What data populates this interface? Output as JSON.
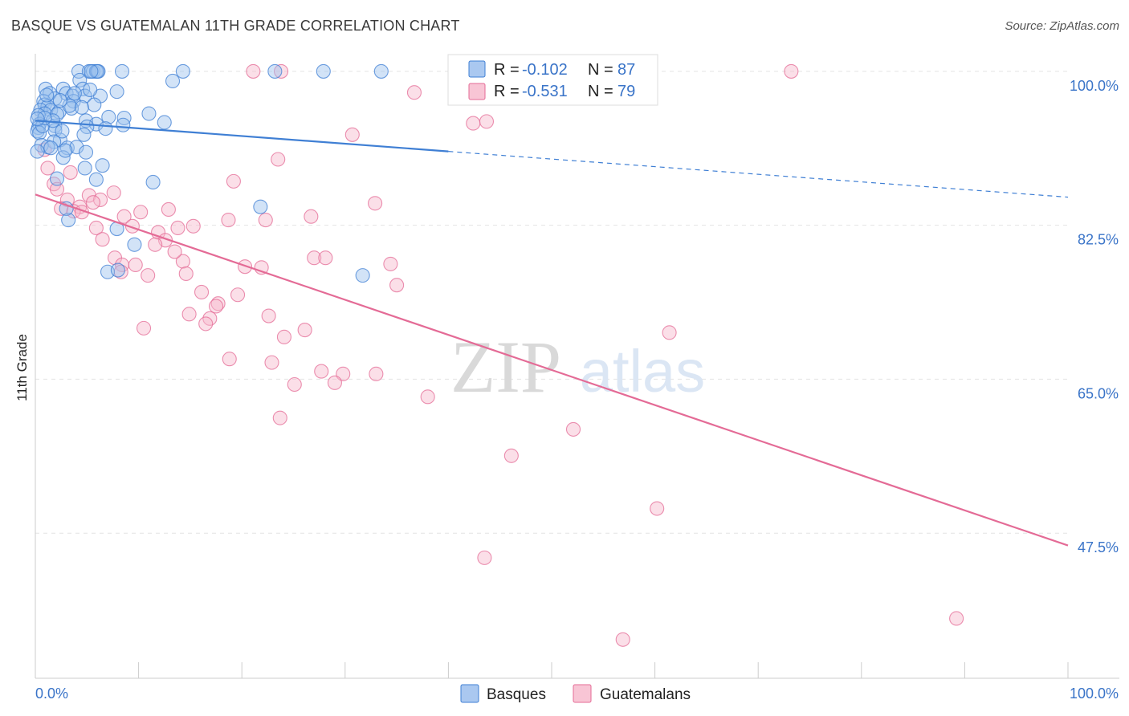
{
  "title": "BASQUE VS GUATEMALAN 11TH GRADE CORRELATION CHART",
  "source": "Source: ZipAtlas.com",
  "chart_data": {
    "type": "scatter",
    "title": "BASQUE VS GUATEMALAN 11TH GRADE CORRELATION CHART",
    "xlabel": "",
    "ylabel": "11th Grade",
    "xlim": [
      0,
      100
    ],
    "ylim": [
      31,
      102
    ],
    "x_tick_labels": [
      {
        "value": 0,
        "label": "0.0%"
      },
      {
        "value": 100,
        "label": "100.0%"
      }
    ],
    "y_ticks": [
      {
        "value": 100,
        "label": "100.0%"
      },
      {
        "value": 82.5,
        "label": "82.5%"
      },
      {
        "value": 65,
        "label": "65.0%"
      },
      {
        "value": 47.5,
        "label": "47.5%"
      }
    ],
    "grid": true,
    "watermark": {
      "zip": "ZIP",
      "atlas": "atlas"
    },
    "legend": {
      "position": "top-center",
      "entries": [
        {
          "r_label": "R =",
          "r_value": "-0.102",
          "n_label": "N =",
          "n_value": "87"
        },
        {
          "r_label": "R =",
          "r_value": "-0.531",
          "n_label": "N =",
          "n_value": "79"
        }
      ]
    },
    "series": [
      {
        "name": "Basques",
        "color": "#3f7fd4",
        "fill": "#9cc0ee",
        "trend": {
          "x0": 0,
          "y0": 94.4,
          "x1": 40,
          "y1": 90.9,
          "x_dash_end": 100,
          "y_dash_end": 85.7
        },
        "points": [
          [
            4.2,
            100
          ],
          [
            5.2,
            100
          ],
          [
            5.6,
            100
          ],
          [
            5.9,
            100
          ],
          [
            6.1,
            100
          ],
          [
            8.4,
            100
          ],
          [
            14.3,
            100
          ],
          [
            23.2,
            100
          ],
          [
            27.9,
            100
          ],
          [
            33.5,
            100
          ],
          [
            6.0,
            100
          ],
          [
            5.4,
            100
          ],
          [
            4.3,
            99.0
          ],
          [
            13.3,
            98.9
          ],
          [
            1.0,
            98.0
          ],
          [
            2.7,
            98.0
          ],
          [
            4.6,
            98.0
          ],
          [
            7.9,
            97.7
          ],
          [
            1.4,
            97.5
          ],
          [
            3.0,
            97.5
          ],
          [
            3.6,
            97.2
          ],
          [
            4.8,
            97.2
          ],
          [
            6.3,
            97.2
          ],
          [
            1.9,
            96.9
          ],
          [
            3.7,
            96.6
          ],
          [
            0.8,
            96.6
          ],
          [
            0.9,
            96.2
          ],
          [
            5.7,
            96.2
          ],
          [
            1.2,
            96.0
          ],
          [
            3.5,
            95.8
          ],
          [
            0.5,
            95.6
          ],
          [
            1.5,
            95.6
          ],
          [
            2.3,
            95.4
          ],
          [
            0.9,
            95.2
          ],
          [
            11.0,
            95.2
          ],
          [
            0.3,
            95.0
          ],
          [
            8.6,
            94.7
          ],
          [
            4.9,
            94.4
          ],
          [
            12.5,
            94.2
          ],
          [
            0.4,
            94.0
          ],
          [
            5.9,
            94.0
          ],
          [
            8.5,
            93.9
          ],
          [
            1.9,
            93.8
          ],
          [
            5.0,
            93.7
          ],
          [
            0.3,
            93.6
          ],
          [
            1.9,
            93.3
          ],
          [
            0.2,
            93.2
          ],
          [
            0.4,
            93.0
          ],
          [
            4.7,
            92.8
          ],
          [
            2.4,
            92.2
          ],
          [
            1.8,
            92.0
          ],
          [
            0.6,
            91.6
          ],
          [
            1.2,
            91.4
          ],
          [
            3.1,
            91.3
          ],
          [
            4.0,
            91.4
          ],
          [
            1.5,
            91.3
          ],
          [
            0.2,
            90.9
          ],
          [
            4.9,
            90.8
          ],
          [
            2.7,
            90.2
          ],
          [
            6.5,
            89.3
          ],
          [
            4.8,
            89.0
          ],
          [
            2.1,
            87.8
          ],
          [
            5.9,
            87.7
          ],
          [
            11.4,
            87.4
          ],
          [
            21.8,
            84.6
          ],
          [
            3.2,
            83.1
          ],
          [
            0.7,
            93.8
          ],
          [
            2.1,
            95.1
          ],
          [
            3.3,
            96.1
          ],
          [
            1.7,
            94.4
          ],
          [
            2.6,
            93.2
          ],
          [
            0.9,
            94.7
          ],
          [
            3.8,
            97.5
          ],
          [
            1.1,
            97.3
          ],
          [
            4.5,
            95.9
          ],
          [
            7.1,
            94.8
          ],
          [
            2.9,
            91.0
          ],
          [
            3.0,
            84.4
          ],
          [
            6.8,
            93.5
          ],
          [
            7.9,
            82.1
          ],
          [
            9.6,
            80.3
          ],
          [
            7.0,
            77.2
          ],
          [
            8.0,
            77.4
          ],
          [
            31.7,
            76.8
          ],
          [
            0.2,
            94.6
          ],
          [
            5.3,
            97.9
          ],
          [
            2.4,
            96.7
          ]
        ]
      },
      {
        "name": "Guatemalans",
        "color": "#e46b96",
        "fill": "#f6b8cc",
        "trend": {
          "x0": 0,
          "y0": 86.0,
          "x1": 100,
          "y1": 46.1
        },
        "points": [
          [
            21.1,
            100
          ],
          [
            23.8,
            100
          ],
          [
            73.2,
            100
          ],
          [
            36.7,
            97.6
          ],
          [
            43.7,
            94.3
          ],
          [
            30.7,
            92.8
          ],
          [
            23.5,
            90.0
          ],
          [
            1.2,
            89.0
          ],
          [
            19.2,
            87.5
          ],
          [
            1.8,
            87.2
          ],
          [
            2.1,
            86.6
          ],
          [
            7.6,
            86.2
          ],
          [
            5.2,
            85.9
          ],
          [
            3.1,
            85.4
          ],
          [
            6.3,
            85.4
          ],
          [
            32.9,
            85.0
          ],
          [
            4.3,
            84.6
          ],
          [
            2.5,
            84.4
          ],
          [
            12.9,
            84.3
          ],
          [
            10.2,
            84.0
          ],
          [
            3.7,
            84.1
          ],
          [
            4.5,
            84.0
          ],
          [
            8.6,
            83.5
          ],
          [
            26.7,
            83.5
          ],
          [
            22.3,
            83.1
          ],
          [
            18.7,
            83.1
          ],
          [
            9.4,
            82.4
          ],
          [
            15.3,
            82.4
          ],
          [
            13.8,
            82.2
          ],
          [
            5.9,
            82.2
          ],
          [
            11.9,
            81.7
          ],
          [
            12.6,
            80.8
          ],
          [
            6.5,
            80.9
          ],
          [
            11.6,
            80.3
          ],
          [
            27.0,
            78.8
          ],
          [
            28.1,
            78.8
          ],
          [
            7.7,
            78.8
          ],
          [
            34.4,
            78.1
          ],
          [
            8.4,
            78.0
          ],
          [
            9.7,
            78.0
          ],
          [
            14.3,
            78.4
          ],
          [
            20.3,
            77.8
          ],
          [
            21.9,
            77.7
          ],
          [
            13.5,
            79.5
          ],
          [
            14.6,
            77.0
          ],
          [
            8.3,
            77.2
          ],
          [
            10.9,
            76.8
          ],
          [
            35.0,
            75.7
          ],
          [
            16.1,
            74.9
          ],
          [
            19.6,
            74.6
          ],
          [
            17.7,
            73.6
          ],
          [
            17.5,
            73.3
          ],
          [
            14.9,
            72.4
          ],
          [
            16.9,
            71.9
          ],
          [
            22.6,
            72.2
          ],
          [
            16.5,
            71.3
          ],
          [
            10.5,
            70.8
          ],
          [
            26.1,
            70.6
          ],
          [
            24.1,
            69.8
          ],
          [
            61.4,
            70.3
          ],
          [
            18.8,
            67.3
          ],
          [
            22.9,
            66.9
          ],
          [
            27.7,
            65.9
          ],
          [
            29.8,
            65.6
          ],
          [
            33.0,
            65.6
          ],
          [
            25.1,
            64.4
          ],
          [
            29.0,
            64.6
          ],
          [
            38.0,
            63.0
          ],
          [
            23.7,
            60.6
          ],
          [
            52.1,
            59.3
          ],
          [
            46.1,
            56.3
          ],
          [
            60.2,
            50.3
          ],
          [
            43.5,
            44.7
          ],
          [
            89.2,
            37.8
          ],
          [
            56.9,
            35.4
          ],
          [
            0.9,
            91.1
          ],
          [
            3.4,
            88.5
          ],
          [
            42.4,
            94.1
          ],
          [
            5.6,
            85.1
          ]
        ]
      }
    ]
  },
  "bottom_legend": [
    {
      "label": "Basques"
    },
    {
      "label": "Guatemalans"
    }
  ]
}
